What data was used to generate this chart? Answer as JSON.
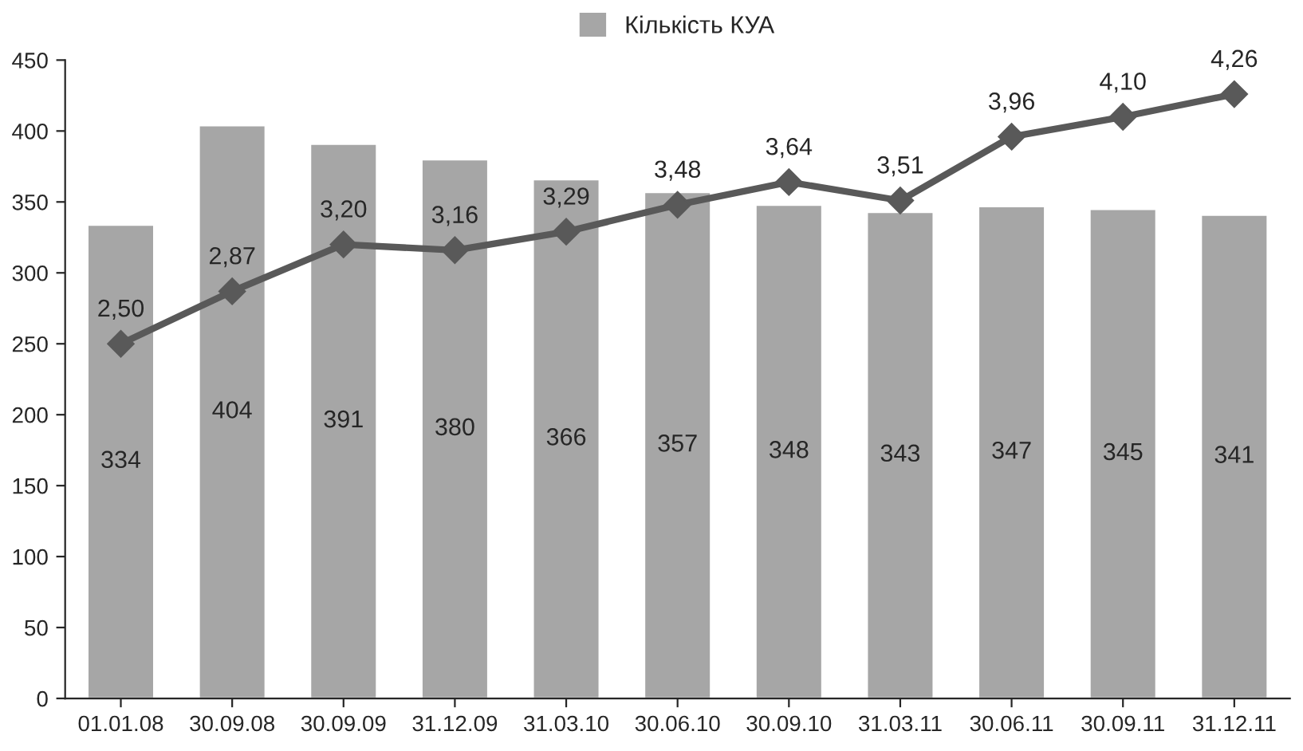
{
  "chart_data": {
    "type": "bar",
    "categories": [
      "01.01.08",
      "30.09.08",
      "30.09.09",
      "31.12.09",
      "31.03.10",
      "30.06.10",
      "30.09.10",
      "31.03.11",
      "30.06.11",
      "30.09.11",
      "31.12.11"
    ],
    "series": [
      {
        "name": "Кількість КУА",
        "color": "#a6a6a6",
        "values": [
          334,
          404,
          391,
          380,
          366,
          357,
          348,
          343,
          347,
          345,
          341
        ]
      },
      {
        "type": "line",
        "axis": "y2",
        "color": "#595959",
        "marker": "diamond",
        "values": [
          2.5,
          2.87,
          3.2,
          3.16,
          3.29,
          3.48,
          3.64,
          3.51,
          3.96,
          4.1,
          4.26
        ],
        "value_labels": [
          "2,50",
          "2,87",
          "3,20",
          "3,16",
          "3,29",
          "3,48",
          "3,64",
          "3,51",
          "3,96",
          "4,10",
          "4,26"
        ]
      }
    ],
    "ylim": [
      0,
      450
    ],
    "yticks": [
      0,
      50,
      100,
      150,
      200,
      250,
      300,
      350,
      400,
      450
    ],
    "y2lim": [
      0,
      4.5
    ],
    "data_labels": true,
    "legend": "top",
    "grid": false
  }
}
